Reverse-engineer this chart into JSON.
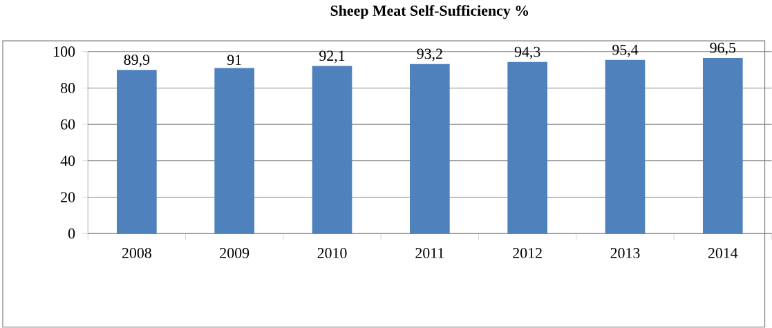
{
  "chart_data": {
    "type": "bar",
    "title": "Sheep Meat Self-Sufficiency %",
    "categories": [
      "2008",
      "2009",
      "2010",
      "2011",
      "2012",
      "2013",
      "2014"
    ],
    "values": [
      89.9,
      91,
      92.1,
      93.2,
      94.3,
      95.4,
      96.5
    ],
    "value_labels": [
      "89,9",
      "91",
      "92,1",
      "93,2",
      "94,3",
      "95,4",
      "96,5"
    ],
    "color": "#4f81bd",
    "ylim": [
      0,
      100
    ],
    "yticks": [
      0,
      20,
      40,
      60,
      80,
      100
    ],
    "grid": "y"
  }
}
